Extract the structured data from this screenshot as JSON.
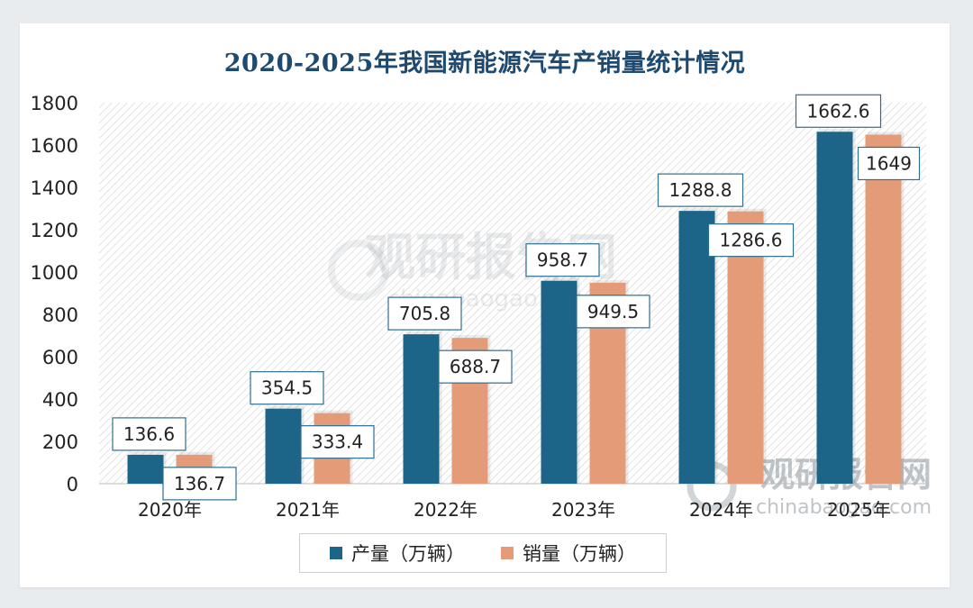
{
  "title": "2020-2025年我国新能源汽车产销量统计情况",
  "colors": {
    "production": "#1c6488",
    "sales": "#e49c78",
    "label_border": "#2e6f90",
    "grid": "#d7d7d7",
    "hatch": "#e3e3e3"
  },
  "watermark": {
    "brand": "观研报告网",
    "site": "chinabaogao.com"
  },
  "legend": {
    "production": "产量（万辆）",
    "sales": "销量（万辆）"
  },
  "chart_data": {
    "type": "bar",
    "title": "2020-2025年我国新能源汽车产销量统计情况",
    "categories": [
      "2020年",
      "2021年",
      "2022年",
      "2023年",
      "2024年",
      "2025年"
    ],
    "series": [
      {
        "name": "产量（万辆）",
        "values": [
          136.6,
          354.5,
          705.8,
          958.7,
          1288.8,
          1662.6
        ],
        "labels": [
          "136.6",
          "354.5",
          "705.8",
          "958.7",
          "1288.8",
          "1662.6"
        ]
      },
      {
        "name": "销量（万辆）",
        "values": [
          136.7,
          333.4,
          688.7,
          949.5,
          1286.6,
          1649
        ],
        "labels": [
          "136.7",
          "333.4",
          "688.7",
          "949.5",
          "1286.6",
          "1649"
        ]
      }
    ],
    "yticks": [
      0,
      200,
      400,
      600,
      800,
      1000,
      1200,
      1400,
      1600,
      1800
    ],
    "ylim": [
      0,
      1800
    ],
    "xlabel": "",
    "ylabel": "",
    "grid": false,
    "legend_position": "bottom"
  }
}
